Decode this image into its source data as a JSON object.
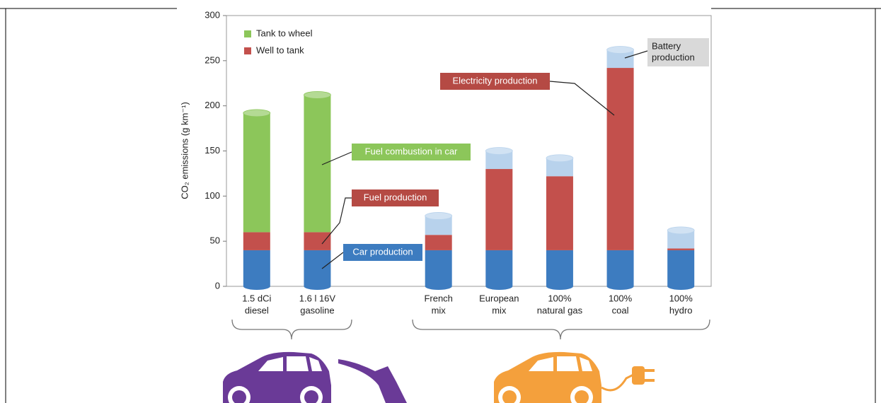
{
  "chart_data": {
    "type": "stacked-cylinder-bar",
    "y_label": "CO₂ emissions (g km⁻¹)",
    "categories": [
      [
        "1.5 dCi",
        "diesel"
      ],
      [
        "1.6 l 16V",
        "gasoline"
      ],
      null,
      [
        "French",
        "mix"
      ],
      [
        "European",
        "mix"
      ],
      [
        "100%",
        "natural gas"
      ],
      [
        "100%",
        "coal"
      ],
      [
        "100%",
        "hydro"
      ]
    ],
    "series": [
      {
        "name": "Car production",
        "color": "#3d7cc0",
        "legend": false,
        "values": [
          40,
          40,
          null,
          40,
          40,
          40,
          40,
          40
        ]
      },
      {
        "name": "Well to tank",
        "color": "#c3504c",
        "legend": true,
        "values": [
          20,
          20,
          null,
          17,
          90,
          82,
          202,
          2
        ]
      },
      {
        "name": "Tank to wheel",
        "color": "#8cc65a",
        "legend": true,
        "values": [
          132,
          152,
          null,
          null,
          null,
          null,
          null,
          null
        ]
      },
      {
        "name": "Battery production",
        "color": "#b8d2ec",
        "legend": false,
        "values": [
          null,
          null,
          null,
          21,
          20,
          20,
          20,
          20
        ]
      }
    ],
    "annotations": [
      [
        "Fuel combustion in car"
      ],
      [
        "Fuel production"
      ],
      [
        "Car production"
      ],
      [
        "Electricity production"
      ],
      [
        "Battery",
        "production"
      ]
    ],
    "ylim": [
      0,
      300
    ],
    "yticks": [
      0,
      50,
      100,
      150,
      200,
      250,
      300
    ]
  }
}
